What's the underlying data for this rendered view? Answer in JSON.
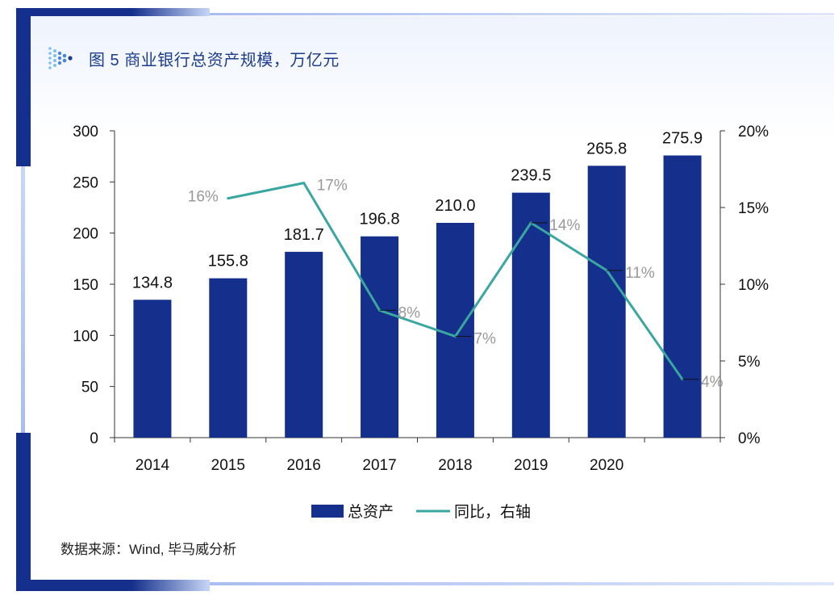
{
  "title": "图 5  商业银行总资产规模，万亿元",
  "source": "数据来源：Wind, 毕马威分析",
  "colors": {
    "bar": "#15308c",
    "line": "#3aa6a0",
    "line_label": "#999999",
    "frame_dark": "#15308c",
    "frame_light": "#a9bdf0",
    "title": "#1b3c8c",
    "axis": "#333333"
  },
  "icons": {
    "header": "dot-matrix-icon"
  },
  "chart_data": {
    "type": "bar",
    "categories": [
      "2014",
      "2015",
      "2016",
      "2017",
      "2018",
      "2019",
      "2020",
      ""
    ],
    "series": [
      {
        "name": "总资产",
        "type": "bar",
        "axis": "left",
        "values": [
          134.8,
          155.8,
          181.7,
          196.8,
          210.0,
          239.5,
          265.8,
          275.9
        ],
        "labels": [
          "134.8",
          "155.8",
          "181.7",
          "196.8",
          "210.0",
          "239.5",
          "265.8",
          "275.9"
        ]
      },
      {
        "name": "同比，右轴",
        "type": "line",
        "axis": "right",
        "values": [
          null,
          15.6,
          16.6,
          8.3,
          6.6,
          14.0,
          10.9,
          3.8
        ],
        "labels": [
          null,
          "16%",
          "17%",
          "8%",
          "7%",
          "14%",
          "11%",
          "4%"
        ]
      }
    ],
    "y_left": {
      "min": 0,
      "max": 300,
      "ticks": [
        "0",
        "50",
        "100",
        "150",
        "200",
        "250",
        "300"
      ]
    },
    "y_right": {
      "min": 0,
      "max": 20,
      "ticks": [
        "0%",
        "5%",
        "10%",
        "15%",
        "20%"
      ]
    },
    "grid": false,
    "legend_position": "bottom"
  }
}
